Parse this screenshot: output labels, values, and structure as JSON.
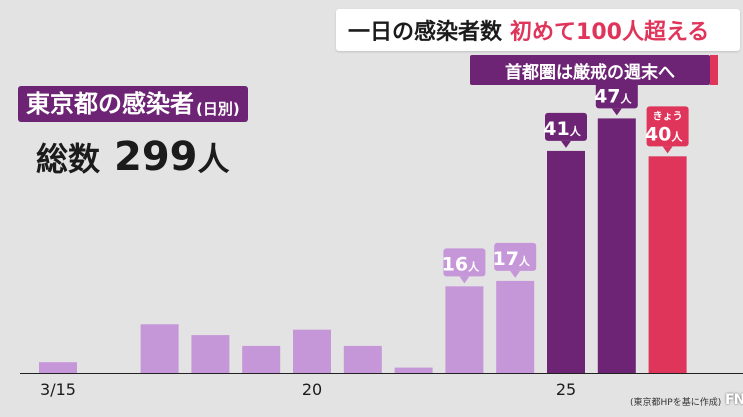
{
  "headline": {
    "main": "一日の感染者数",
    "accent": "初めて100人超える"
  },
  "subheadline": "首都圏は厳戒の週末へ",
  "chart_title": {
    "main": "東京都の感染者",
    "sub": "(日別)"
  },
  "total": {
    "label": "総数",
    "value": "299",
    "unit": "人"
  },
  "source": "(東京都HPを基に作成)",
  "logo": "FNN",
  "colors": {
    "light": "#c697d8",
    "dark": "#6d2474",
    "today": "#e0355b"
  },
  "chart_data": {
    "type": "bar",
    "x": [
      "3/15",
      "3/16",
      "3/17",
      "3/18",
      "3/19",
      "3/20",
      "3/21",
      "3/22",
      "3/23",
      "3/24",
      "3/25",
      "3/26",
      "3/27"
    ],
    "values": [
      2,
      0,
      9,
      7,
      5,
      8,
      5,
      1,
      16,
      17,
      41,
      47,
      40
    ],
    "x_tick_labels": [
      {
        "index": 0,
        "text": "3/15"
      },
      {
        "index": 5,
        "text": "20"
      },
      {
        "index": 10,
        "text": "25"
      }
    ],
    "labels": [
      {
        "index": 8,
        "value": "16",
        "unit": "人",
        "style": "light"
      },
      {
        "index": 9,
        "value": "17",
        "unit": "人",
        "style": "light"
      },
      {
        "index": 10,
        "value": "41",
        "unit": "人",
        "style": "dark"
      },
      {
        "index": 11,
        "value": "47",
        "unit": "人",
        "style": "dark"
      },
      {
        "index": 12,
        "value": "40",
        "unit": "人",
        "style": "today",
        "prefix": "きょう"
      }
    ],
    "colors_by_index": [
      "light",
      "light",
      "light",
      "light",
      "light",
      "light",
      "light",
      "light",
      "light",
      "light",
      "dark",
      "dark",
      "today"
    ],
    "ylim": [
      0,
      60
    ],
    "grid": false
  }
}
